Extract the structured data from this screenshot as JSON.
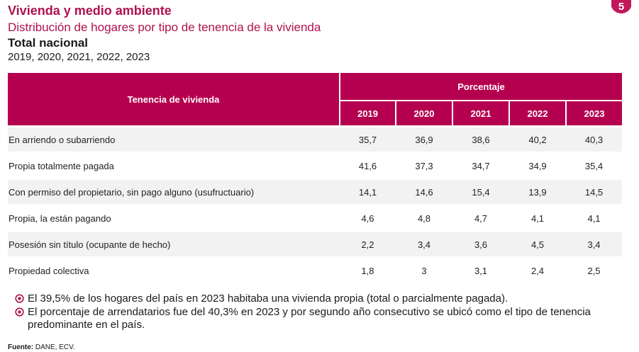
{
  "header": {
    "title": "Vivienda y medio ambiente",
    "subtitle": "Distribución de hogares por tipo de tenencia de la vivienda",
    "scope": "Total nacional",
    "years_label": "2019, 2020, 2021, 2022, 2023"
  },
  "table": {
    "row_header": "Tenencia de vivienda",
    "group_header": "Porcentaje",
    "years": [
      "2019",
      "2020",
      "2021",
      "2022",
      "2023"
    ],
    "rows": [
      {
        "label": "En arriendo o subarriendo",
        "values": [
          "35,7",
          "36,9",
          "38,6",
          "40,2",
          "40,3"
        ]
      },
      {
        "label": "Propia totalmente pagada",
        "values": [
          "41,6",
          "37,3",
          "34,7",
          "34,9",
          "35,4"
        ]
      },
      {
        "label": "Con permiso del propietario, sin pago alguno (usufructuario)",
        "values": [
          "14,1",
          "14,6",
          "15,4",
          "13,9",
          "14,5"
        ]
      },
      {
        "label": "Propia, la están pagando",
        "values": [
          "4,6",
          "4,8",
          "4,7",
          "4,1",
          "4,1"
        ]
      },
      {
        "label": "Posesión sin título (ocupante de hecho)",
        "values": [
          "2,2",
          "3,4",
          "3,6",
          "4,5",
          "3,4"
        ]
      },
      {
        "label": "Propiedad colectiva",
        "values": [
          "1,8",
          "3",
          "3,1",
          "2,4",
          "2,5"
        ]
      }
    ]
  },
  "notes": [
    "El 39,5% de los hogares del país en 2023 habitaba una vivienda propia (total o parcialmente pagada).",
    "El porcentaje de arrendatarios fue del 40,3% en 2023 y por segundo año consecutivo se ubicó como el tipo de tenencia predominante en el país."
  ],
  "source": {
    "label": "Fuente:",
    "text": " DANE, ECV."
  },
  "colors": {
    "accent": "#b0124d",
    "header_bg": "#b5004f",
    "row_shade": "#f2f2f2"
  },
  "icons": {
    "logo": "brand-logo-icon",
    "bullet": "circled-dot-bullet-icon"
  }
}
